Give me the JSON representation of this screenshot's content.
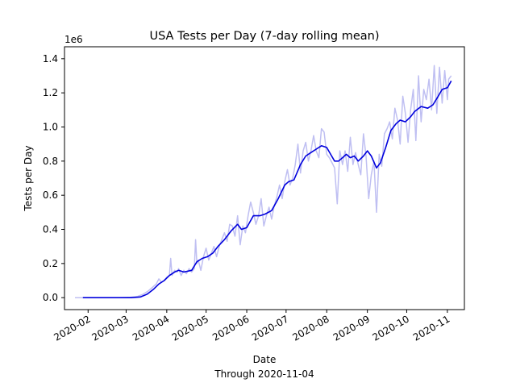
{
  "chart_data": {
    "type": "line",
    "title": "USA Tests per Day (7-day rolling mean)",
    "xlabel": "Date",
    "xlabel_note": "Through 2020-11-04",
    "ylabel": "Tests per Day",
    "y_offset_label": "1e6",
    "xlim": [
      "2020-01-14",
      "2020-11-14"
    ],
    "ylim": [
      -0.07,
      1.47
    ],
    "y_ticks": [
      0.0,
      0.2,
      0.4,
      0.6,
      0.8,
      1.0,
      1.2,
      1.4
    ],
    "y_tick_labels": [
      "0.0",
      "0.2",
      "0.4",
      "0.6",
      "0.8",
      "1.0",
      "1.2",
      "1.4"
    ],
    "x_ticks": [
      "2020-02-01",
      "2020-03-01",
      "2020-04-01",
      "2020-05-01",
      "2020-06-01",
      "2020-07-01",
      "2020-08-01",
      "2020-09-01",
      "2020-10-01",
      "2020-11-01"
    ],
    "x_tick_labels": [
      "2020-02",
      "2020-03",
      "2020-04",
      "2020-05",
      "2020-06",
      "2020-07",
      "2020-08",
      "2020-09",
      "2020-10",
      "2020-11"
    ],
    "grid": false,
    "legend": "none",
    "series": [
      {
        "role": "daily",
        "color": "#bfbff2",
        "points": [
          [
            "2020-01-22",
            0
          ],
          [
            "2020-01-28",
            0
          ],
          [
            "2020-02-10",
            0
          ],
          [
            "2020-02-25",
            0
          ],
          [
            "2020-03-04",
            0.002
          ],
          [
            "2020-03-10",
            0.008
          ],
          [
            "2020-03-14",
            0.02
          ],
          [
            "2020-03-18",
            0.04
          ],
          [
            "2020-03-21",
            0.06
          ],
          [
            "2020-03-24",
            0.08
          ],
          [
            "2020-03-26",
            0.11
          ],
          [
            "2020-03-28",
            0.09
          ],
          [
            "2020-03-30",
            0.1
          ],
          [
            "2020-04-01",
            0.12
          ],
          [
            "2020-04-03",
            0.13
          ],
          [
            "2020-04-04",
            0.23
          ],
          [
            "2020-04-05",
            0.13
          ],
          [
            "2020-04-07",
            0.16
          ],
          [
            "2020-04-09",
            0.15
          ],
          [
            "2020-04-10",
            0.17
          ],
          [
            "2020-04-12",
            0.13
          ],
          [
            "2020-04-14",
            0.16
          ],
          [
            "2020-04-16",
            0.14
          ],
          [
            "2020-04-18",
            0.17
          ],
          [
            "2020-04-20",
            0.15
          ],
          [
            "2020-04-22",
            0.17
          ],
          [
            "2020-04-23",
            0.34
          ],
          [
            "2020-04-24",
            0.2
          ],
          [
            "2020-04-25",
            0.22
          ],
          [
            "2020-04-27",
            0.16
          ],
          [
            "2020-04-29",
            0.24
          ],
          [
            "2020-05-01",
            0.29
          ],
          [
            "2020-05-03",
            0.22
          ],
          [
            "2020-05-05",
            0.26
          ],
          [
            "2020-05-07",
            0.3
          ],
          [
            "2020-05-09",
            0.24
          ],
          [
            "2020-05-11",
            0.3
          ],
          [
            "2020-05-13",
            0.34
          ],
          [
            "2020-05-15",
            0.38
          ],
          [
            "2020-05-17",
            0.33
          ],
          [
            "2020-05-19",
            0.43
          ],
          [
            "2020-05-21",
            0.42
          ],
          [
            "2020-05-23",
            0.36
          ],
          [
            "2020-05-25",
            0.48
          ],
          [
            "2020-05-27",
            0.31
          ],
          [
            "2020-05-29",
            0.42
          ],
          [
            "2020-05-31",
            0.38
          ],
          [
            "2020-06-02",
            0.48
          ],
          [
            "2020-06-04",
            0.56
          ],
          [
            "2020-06-06",
            0.5
          ],
          [
            "2020-06-08",
            0.43
          ],
          [
            "2020-06-10",
            0.48
          ],
          [
            "2020-06-12",
            0.58
          ],
          [
            "2020-06-14",
            0.42
          ],
          [
            "2020-06-16",
            0.48
          ],
          [
            "2020-06-18",
            0.53
          ],
          [
            "2020-06-20",
            0.46
          ],
          [
            "2020-06-22",
            0.54
          ],
          [
            "2020-06-24",
            0.59
          ],
          [
            "2020-06-26",
            0.66
          ],
          [
            "2020-06-28",
            0.58
          ],
          [
            "2020-06-30",
            0.68
          ],
          [
            "2020-07-02",
            0.75
          ],
          [
            "2020-07-04",
            0.66
          ],
          [
            "2020-07-06",
            0.7
          ],
          [
            "2020-07-08",
            0.78
          ],
          [
            "2020-07-10",
            0.9
          ],
          [
            "2020-07-12",
            0.73
          ],
          [
            "2020-07-14",
            0.86
          ],
          [
            "2020-07-16",
            0.91
          ],
          [
            "2020-07-18",
            0.8
          ],
          [
            "2020-07-20",
            0.86
          ],
          [
            "2020-07-22",
            0.95
          ],
          [
            "2020-07-24",
            0.86
          ],
          [
            "2020-07-26",
            0.82
          ],
          [
            "2020-07-28",
            0.99
          ],
          [
            "2020-07-30",
            0.97
          ],
          [
            "2020-08-01",
            0.84
          ],
          [
            "2020-08-03",
            0.82
          ],
          [
            "2020-08-05",
            0.79
          ],
          [
            "2020-08-07",
            0.76
          ],
          [
            "2020-08-09",
            0.55
          ],
          [
            "2020-08-11",
            0.86
          ],
          [
            "2020-08-13",
            0.78
          ],
          [
            "2020-08-15",
            0.86
          ],
          [
            "2020-08-17",
            0.74
          ],
          [
            "2020-08-19",
            0.94
          ],
          [
            "2020-08-21",
            0.78
          ],
          [
            "2020-08-23",
            0.85
          ],
          [
            "2020-08-25",
            0.78
          ],
          [
            "2020-08-27",
            0.72
          ],
          [
            "2020-08-29",
            0.96
          ],
          [
            "2020-08-31",
            0.83
          ],
          [
            "2020-09-02",
            0.58
          ],
          [
            "2020-09-04",
            0.72
          ],
          [
            "2020-09-06",
            0.8
          ],
          [
            "2020-09-08",
            0.5
          ],
          [
            "2020-09-10",
            0.84
          ],
          [
            "2020-09-12",
            0.77
          ],
          [
            "2020-09-14",
            0.96
          ],
          [
            "2020-09-16",
            0.99
          ],
          [
            "2020-09-18",
            1.03
          ],
          [
            "2020-09-20",
            0.93
          ],
          [
            "2020-09-22",
            1.11
          ],
          [
            "2020-09-24",
            1.04
          ],
          [
            "2020-09-26",
            0.9
          ],
          [
            "2020-09-28",
            1.18
          ],
          [
            "2020-09-30",
            1.08
          ],
          [
            "2020-10-02",
            0.91
          ],
          [
            "2020-10-04",
            1.1
          ],
          [
            "2020-10-06",
            1.22
          ],
          [
            "2020-10-08",
            0.92
          ],
          [
            "2020-10-10",
            1.3
          ],
          [
            "2020-10-12",
            1.03
          ],
          [
            "2020-10-14",
            1.22
          ],
          [
            "2020-10-16",
            1.16
          ],
          [
            "2020-10-18",
            1.28
          ],
          [
            "2020-10-20",
            1.1
          ],
          [
            "2020-10-22",
            1.36
          ],
          [
            "2020-10-24",
            1.08
          ],
          [
            "2020-10-26",
            1.35
          ],
          [
            "2020-10-28",
            1.14
          ],
          [
            "2020-10-30",
            1.33
          ],
          [
            "2020-11-01",
            1.16
          ],
          [
            "2020-11-02",
            1.28
          ],
          [
            "2020-11-04",
            1.3
          ]
        ]
      },
      {
        "role": "rolling-mean",
        "color": "#0000dd",
        "points": [
          [
            "2020-01-28",
            0
          ],
          [
            "2020-02-10",
            0
          ],
          [
            "2020-02-25",
            0
          ],
          [
            "2020-03-05",
            0
          ],
          [
            "2020-03-12",
            0.004
          ],
          [
            "2020-03-17",
            0.02
          ],
          [
            "2020-03-22",
            0.05
          ],
          [
            "2020-03-26",
            0.08
          ],
          [
            "2020-03-30",
            0.1
          ],
          [
            "2020-04-03",
            0.13
          ],
          [
            "2020-04-07",
            0.15
          ],
          [
            "2020-04-10",
            0.16
          ],
          [
            "2020-04-14",
            0.15
          ],
          [
            "2020-04-20",
            0.16
          ],
          [
            "2020-04-24",
            0.21
          ],
          [
            "2020-04-28",
            0.23
          ],
          [
            "2020-05-02",
            0.24
          ],
          [
            "2020-05-06",
            0.26
          ],
          [
            "2020-05-10",
            0.3
          ],
          [
            "2020-05-15",
            0.34
          ],
          [
            "2020-05-20",
            0.39
          ],
          [
            "2020-05-25",
            0.43
          ],
          [
            "2020-05-28",
            0.4
          ],
          [
            "2020-06-01",
            0.41
          ],
          [
            "2020-06-06",
            0.48
          ],
          [
            "2020-06-11",
            0.48
          ],
          [
            "2020-06-15",
            0.49
          ],
          [
            "2020-06-20",
            0.51
          ],
          [
            "2020-06-25",
            0.58
          ],
          [
            "2020-06-30",
            0.66
          ],
          [
            "2020-07-03",
            0.68
          ],
          [
            "2020-07-07",
            0.69
          ],
          [
            "2020-07-12",
            0.78
          ],
          [
            "2020-07-16",
            0.83
          ],
          [
            "2020-07-20",
            0.85
          ],
          [
            "2020-07-24",
            0.87
          ],
          [
            "2020-07-28",
            0.89
          ],
          [
            "2020-08-01",
            0.88
          ],
          [
            "2020-08-04",
            0.84
          ],
          [
            "2020-08-07",
            0.8
          ],
          [
            "2020-08-10",
            0.8
          ],
          [
            "2020-08-13",
            0.82
          ],
          [
            "2020-08-16",
            0.84
          ],
          [
            "2020-08-19",
            0.82
          ],
          [
            "2020-08-22",
            0.83
          ],
          [
            "2020-08-25",
            0.8
          ],
          [
            "2020-08-29",
            0.83
          ],
          [
            "2020-09-01",
            0.86
          ],
          [
            "2020-09-04",
            0.83
          ],
          [
            "2020-09-08",
            0.76
          ],
          [
            "2020-09-11",
            0.79
          ],
          [
            "2020-09-15",
            0.88
          ],
          [
            "2020-09-19",
            0.98
          ],
          [
            "2020-09-23",
            1.02
          ],
          [
            "2020-09-26",
            1.04
          ],
          [
            "2020-09-30",
            1.03
          ],
          [
            "2020-10-04",
            1.06
          ],
          [
            "2020-10-07",
            1.09
          ],
          [
            "2020-10-12",
            1.12
          ],
          [
            "2020-10-17",
            1.11
          ],
          [
            "2020-10-21",
            1.13
          ],
          [
            "2020-10-25",
            1.18
          ],
          [
            "2020-10-28",
            1.22
          ],
          [
            "2020-11-01",
            1.23
          ],
          [
            "2020-11-04",
            1.27
          ]
        ]
      }
    ]
  }
}
